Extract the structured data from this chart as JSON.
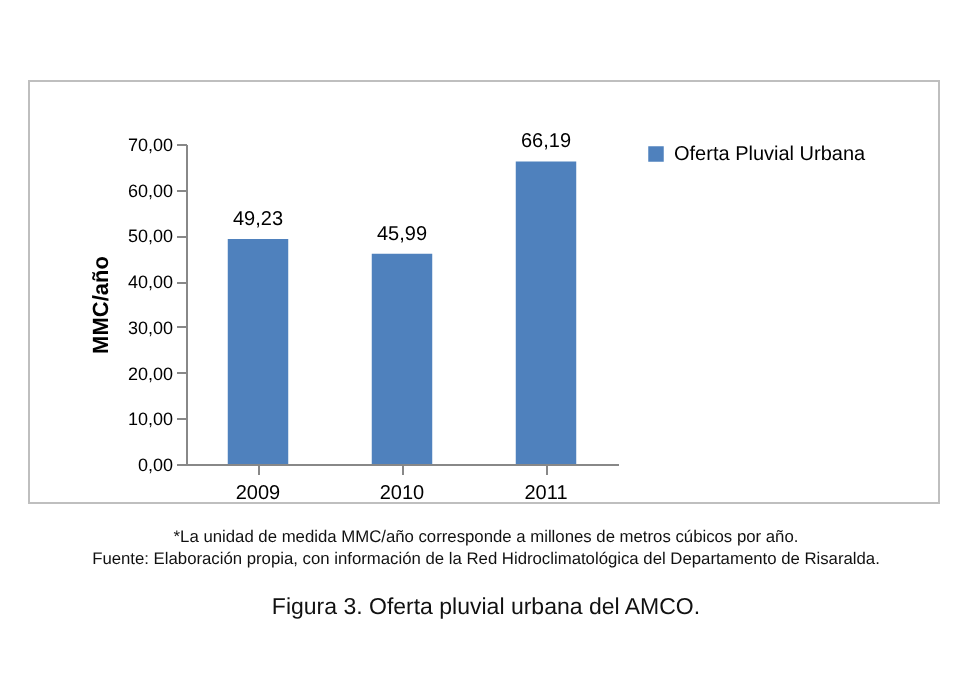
{
  "chart_data": {
    "type": "bar",
    "ylabel": "MMC/año",
    "categories": [
      "2009",
      "2010",
      "2011"
    ],
    "series": [
      {
        "name": "Oferta Pluvial Urbana",
        "color": "#4f81bd",
        "values": [
          49.23,
          45.99,
          66.19
        ],
        "value_labels": [
          "49,23",
          "45,99",
          "66,19"
        ]
      }
    ],
    "ylim": [
      0,
      70
    ],
    "yticks": [
      {
        "value": 0,
        "label": "0,00"
      },
      {
        "value": 10,
        "label": "10,00"
      },
      {
        "value": 20,
        "label": "20,00"
      },
      {
        "value": 30,
        "label": "30,00"
      },
      {
        "value": 40,
        "label": "40,00"
      },
      {
        "value": 50,
        "label": "50,00"
      },
      {
        "value": 60,
        "label": "60,00"
      },
      {
        "value": 70,
        "label": "70,00"
      }
    ],
    "legend": "right",
    "annotations": [
      "*La unidad de medida MMC/año corresponde a millones de metros cúbicos por año.",
      "Fuente: Elaboración propia, con información de la Red Hidroclimatológica del Departamento de Risaralda.",
      "Figura 3. Oferta pluvial urbana del AMCO."
    ]
  }
}
